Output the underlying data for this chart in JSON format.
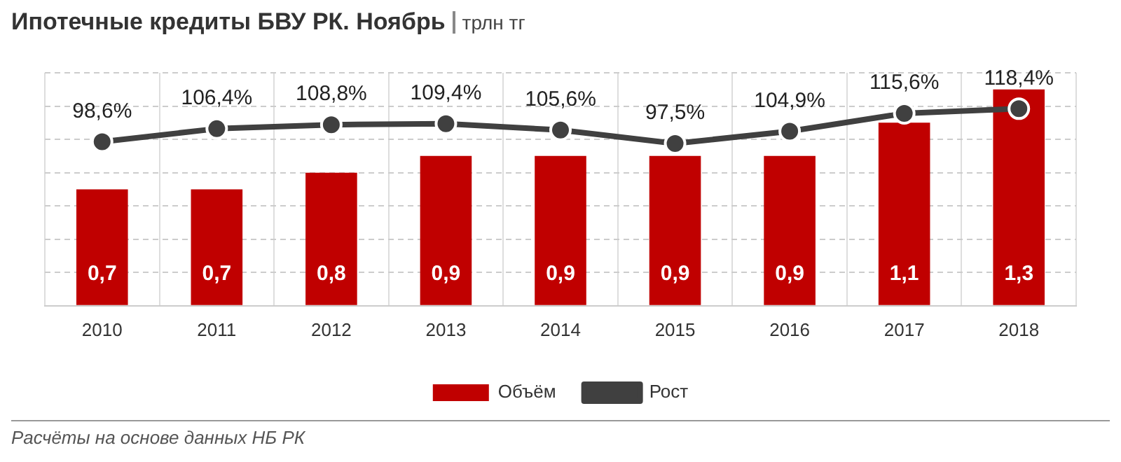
{
  "chart_data": {
    "type": "bar",
    "title": "Ипотечные кредиты БВУ РК. Ноябрь",
    "subtitle": "трлн тг",
    "categories": [
      "2010",
      "2011",
      "2012",
      "2013",
      "2014",
      "2015",
      "2016",
      "2017",
      "2018"
    ],
    "series": [
      {
        "name": "Объём",
        "color": "#c00000",
        "values": [
          0.7,
          0.7,
          0.8,
          0.9,
          0.9,
          0.9,
          0.9,
          1.1,
          1.3
        ],
        "value_labels": [
          "0,7",
          "0,7",
          "0,8",
          "0,9",
          "0,9",
          "0,9",
          "0,9",
          "1,1",
          "1,3"
        ]
      },
      {
        "name": "Рост",
        "type": "line",
        "axis": "y2",
        "color": "#404040",
        "values": [
          98.6,
          106.4,
          108.8,
          109.4,
          105.6,
          97.5,
          104.9,
          115.6,
          118.4
        ],
        "value_labels": [
          "98,6%",
          "106,4%",
          "108,8%",
          "109,4%",
          "105,6%",
          "97,5%",
          "104,9%",
          "115,6%",
          "118,4%"
        ]
      }
    ],
    "tick_labels": "x",
    "grid": true,
    "legend": "bottom",
    "marker": "circle",
    "annotations": [
      "Расчёты на основе данных НБ РК"
    ]
  }
}
